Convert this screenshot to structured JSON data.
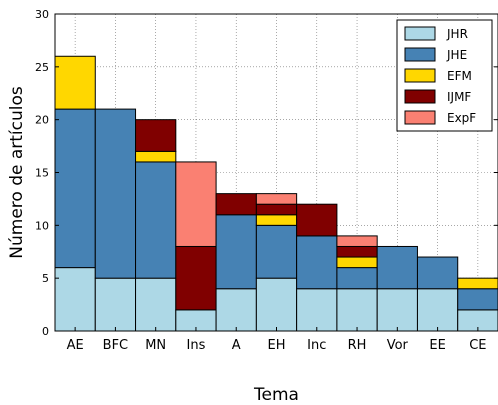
{
  "chart_data": {
    "type": "bar",
    "stacked": true,
    "categories": [
      "AE",
      "BFC",
      "MN",
      "Ins",
      "A",
      "EH",
      "Inc",
      "RH",
      "Vor",
      "EE",
      "CE"
    ],
    "xlabel": "Tema",
    "ylabel": "Número de artículos",
    "ylim": [
      0,
      30
    ],
    "yticks": [
      0,
      5,
      10,
      15,
      20,
      25,
      30
    ],
    "grid": true,
    "legend_position": "top-right",
    "series": [
      {
        "name": "JHR",
        "color": "#add8e6",
        "values": [
          6,
          5,
          5,
          2,
          4,
          5,
          4,
          4,
          4,
          4,
          2
        ]
      },
      {
        "name": "JHE",
        "color": "#4682b4",
        "values": [
          15,
          16,
          11,
          0,
          7,
          5,
          5,
          2,
          4,
          3,
          2
        ]
      },
      {
        "name": "EFM",
        "color": "#ffd700",
        "values": [
          5,
          0,
          1,
          0,
          0,
          1,
          0,
          1,
          0,
          0,
          1
        ]
      },
      {
        "name": "IJMF",
        "color": "#800000",
        "values": [
          0,
          0,
          3,
          6,
          2,
          1,
          3,
          1,
          0,
          0,
          0
        ]
      },
      {
        "name": "ExpF",
        "color": "#fa8072",
        "values": [
          0,
          0,
          0,
          8,
          0,
          1,
          0,
          1,
          0,
          0,
          0
        ]
      }
    ]
  }
}
